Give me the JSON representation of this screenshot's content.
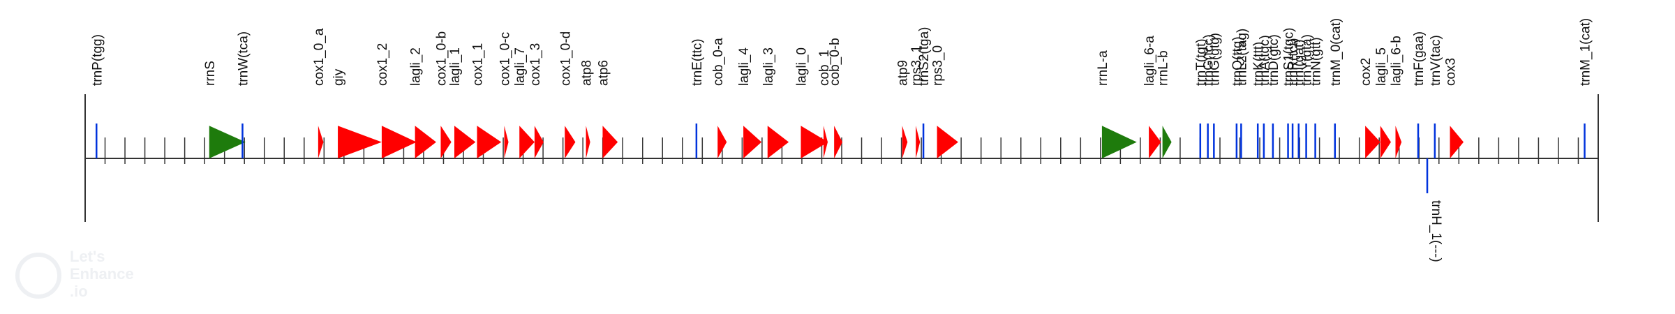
{
  "genome_map": {
    "watermark": {
      "line1": "Let's",
      "line2": "Enhance",
      "line3": ".io"
    },
    "colors": {
      "protein": "#ff0000",
      "rrna": "#1e7b0c",
      "trna": "#0033dd",
      "axis": "#333333"
    },
    "features": [
      {
        "name": "trnP(tgg)",
        "kind": "trna",
        "strand": "+",
        "pos": 0.75
      },
      {
        "name": "rrnS",
        "kind": "rrna",
        "strand": "+",
        "pos": 8.2,
        "len": 2.4
      },
      {
        "name": "trnW(tca)",
        "kind": "trna",
        "strand": "+",
        "pos": 10.4
      },
      {
        "name": "cox1_0_a",
        "kind": "protein",
        "strand": "+",
        "pos": 15.4,
        "len": 0.35
      },
      {
        "name": "giy",
        "kind": "protein",
        "strand": "+",
        "pos": 16.7,
        "len": 2.9
      },
      {
        "name": "cox1_2",
        "kind": "protein",
        "strand": "+",
        "pos": 19.6,
        "len": 2.3
      },
      {
        "name": "lagli_2",
        "kind": "protein",
        "strand": "+",
        "pos": 21.8,
        "len": 1.4
      },
      {
        "name": "cox1_0-b",
        "kind": "protein",
        "strand": "+",
        "pos": 23.5,
        "len": 0.7
      },
      {
        "name": "lagli_1",
        "kind": "protein",
        "strand": "+",
        "pos": 24.4,
        "len": 1.4
      },
      {
        "name": "cox1_1",
        "kind": "protein",
        "strand": "+",
        "pos": 25.9,
        "len": 1.6
      },
      {
        "name": "cox1_0-c",
        "kind": "protein",
        "strand": "+",
        "pos": 27.7,
        "len": 0.25
      },
      {
        "name": "lagli_7",
        "kind": "protein",
        "strand": "+",
        "pos": 28.7,
        "len": 1.0
      },
      {
        "name": "cox1_3",
        "kind": "protein",
        "strand": "+",
        "pos": 29.7,
        "len": 0.6
      },
      {
        "name": "cox1_0-d",
        "kind": "protein",
        "strand": "+",
        "pos": 31.7,
        "len": 0.7
      },
      {
        "name": "atp8",
        "kind": "protein",
        "strand": "+",
        "pos": 33.1,
        "len": 0.25
      },
      {
        "name": "atp6",
        "kind": "protein",
        "strand": "+",
        "pos": 34.2,
        "len": 1.0
      },
      {
        "name": "trnE(ttc)",
        "kind": "trna",
        "strand": "+",
        "pos": 40.4
      },
      {
        "name": "cob_0-a",
        "kind": "protein",
        "strand": "+",
        "pos": 41.8,
        "len": 0.6
      },
      {
        "name": "lagli_4",
        "kind": "protein",
        "strand": "+",
        "pos": 43.5,
        "len": 1.2
      },
      {
        "name": "lagli_3",
        "kind": "protein",
        "strand": "+",
        "pos": 45.1,
        "len": 1.4
      },
      {
        "name": "lagli_0",
        "kind": "protein",
        "strand": "+",
        "pos": 47.3,
        "len": 1.8
      },
      {
        "name": "cob_1",
        "kind": "protein",
        "strand": "+",
        "pos": 48.8,
        "len": 0.15
      },
      {
        "name": "cob_0-b",
        "kind": "protein",
        "strand": "+",
        "pos": 49.5,
        "len": 0.55
      },
      {
        "name": "atp9",
        "kind": "protein",
        "strand": "+",
        "pos": 54.0,
        "len": 0.35
      },
      {
        "name": "rps3_1",
        "kind": "protein",
        "strand": "+",
        "pos": 54.9,
        "len": 0.2
      },
      {
        "name": "trnS2(tga)",
        "kind": "trna",
        "strand": "+",
        "pos": 55.4
      },
      {
        "name": "rps3_0",
        "kind": "protein",
        "strand": "+",
        "pos": 56.3,
        "len": 1.4
      },
      {
        "name": "rrnL-a",
        "kind": "rrna",
        "strand": "+",
        "pos": 67.2,
        "len": 2.3
      },
      {
        "name": "lagli_6-a",
        "kind": "protein",
        "strand": "+",
        "pos": 70.3,
        "len": 0.8
      },
      {
        "name": "rrnL-b",
        "kind": "rrna",
        "strand": "+",
        "pos": 71.2,
        "len": 0.6
      },
      {
        "name": "trnT(tgt)",
        "kind": "trna",
        "strand": "+",
        "pos": 73.7
      },
      {
        "name": "trnG(tcc)",
        "kind": "trna",
        "strand": "+",
        "pos": 74.2
      },
      {
        "name": "trnG(gtg)",
        "kind": "trna",
        "strand": "+",
        "pos": 74.6
      },
      {
        "name": "trnQ(ttg)",
        "kind": "trna",
        "strand": "+",
        "pos": 76.1
      },
      {
        "name": "trnL2(tag)",
        "kind": "trna",
        "strand": "+",
        "pos": 76.4
      },
      {
        "name": "trnK(ttt)",
        "kind": "trna",
        "strand": "+",
        "pos": 77.5
      },
      {
        "name": "trnA(tgc)",
        "kind": "trna",
        "strand": "+",
        "pos": 77.9
      },
      {
        "name": "trnD(gtc)",
        "kind": "trna",
        "strand": "+",
        "pos": 78.5
      },
      {
        "name": "trnS1(tgc)",
        "kind": "trna",
        "strand": "+",
        "pos": 79.5
      },
      {
        "name": "trnR(tct)",
        "kind": "trna",
        "strand": "+",
        "pos": 79.8
      },
      {
        "name": "trnI(gat)",
        "kind": "trna",
        "strand": "+",
        "pos": 80.2
      },
      {
        "name": "trnY(gta)",
        "kind": "trna",
        "strand": "+",
        "pos": 80.7
      },
      {
        "name": "trnN(gtt)",
        "kind": "trna",
        "strand": "+",
        "pos": 81.3
      },
      {
        "name": "trnM_0(cat)",
        "kind": "trna",
        "strand": "+",
        "pos": 82.6
      },
      {
        "name": "cox2",
        "kind": "protein",
        "strand": "+",
        "pos": 84.6,
        "len": 1.0
      },
      {
        "name": "lagli_5",
        "kind": "protein",
        "strand": "+",
        "pos": 85.6,
        "len": 0.7
      },
      {
        "name": "lagli_6-b",
        "kind": "protein",
        "strand": "+",
        "pos": 86.6,
        "len": 0.4
      },
      {
        "name": "trnF(gaa)",
        "kind": "trna",
        "strand": "+",
        "pos": 88.1
      },
      {
        "name": "trnV(tac)",
        "kind": "trna",
        "strand": "+",
        "pos": 89.2
      },
      {
        "name": "cox3",
        "kind": "protein",
        "strand": "+",
        "pos": 90.2,
        "len": 0.9
      },
      {
        "name": "trnH_1(---)",
        "kind": "trna",
        "strand": "-",
        "pos": 88.7
      },
      {
        "name": "trnM_1(cat)",
        "kind": "trna",
        "strand": "+",
        "pos": 99.1
      }
    ]
  }
}
